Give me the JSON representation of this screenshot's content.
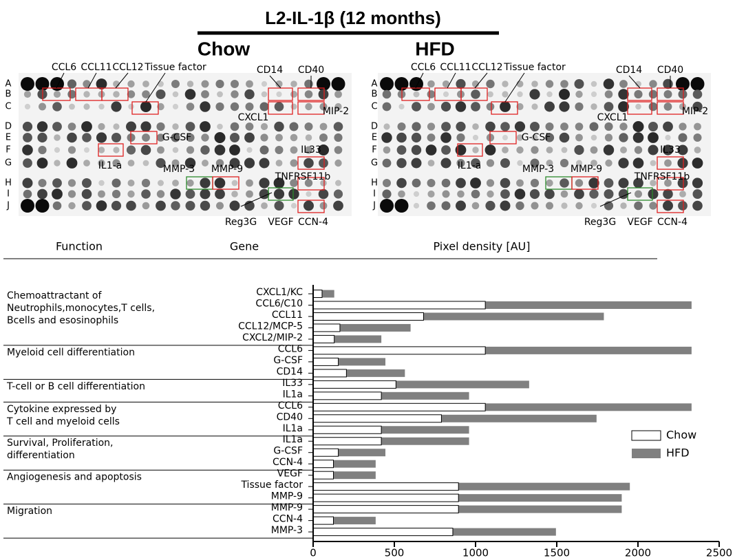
{
  "title": "L2-IL-1β (12 months)",
  "blot": {
    "row_labels": [
      "A",
      "B",
      "C",
      "D",
      "E",
      "F",
      "G",
      "H",
      "I",
      "J"
    ],
    "panels": [
      "Chow",
      "HFD"
    ],
    "labels": [
      "CCL6",
      "CCL11",
      "CCL12",
      "Tissue factor",
      "CD14",
      "CD40",
      "CXCL1",
      "MIP-2",
      "G-CSF",
      "IL1-a",
      "IL33",
      "TNFRSF11b",
      "MMP-3",
      "MMP-9",
      "Reg3G",
      "VEGF",
      "CCN-4"
    ]
  },
  "chart_data": {
    "type": "bar",
    "orientation": "horizontal",
    "function_header": "Function",
    "gene_header": "Gene",
    "xlabel": "Pixel density [AU]",
    "groups": [
      {
        "label": [
          "Chemoattractant of",
          "Neutrophils,monocytes,T cells,",
          "Bcells and esosinophils"
        ],
        "categories": [
          "CXCL1/KC",
          "CCL6/C10",
          "CCL11",
          "CCL12/MCP-5",
          "CXCL2/MIP-2"
        ]
      },
      {
        "label": [
          "Myeloid cell differentiation"
        ],
        "categories": [
          "CCL6",
          "G-CSF",
          "CD14"
        ]
      },
      {
        "label": [
          "T-cell or B cell differentiation"
        ],
        "categories": [
          "IL33",
          "IL1a"
        ]
      },
      {
        "label": [
          "Cytokine expressed by",
          "T cell and myeloid cells"
        ],
        "categories": [
          "CCL6",
          "CD40",
          "IL1a"
        ]
      },
      {
        "label": [
          "Survival, Proliferation,",
          "differentiation"
        ],
        "categories": [
          "IL1a",
          "G-CSF",
          "CCN-4"
        ]
      },
      {
        "label": [
          "Angiogenesis and apoptosis"
        ],
        "categories": [
          "VEGF",
          "Tissue factor",
          "MMP-9"
        ]
      },
      {
        "label": [
          "Migration"
        ],
        "categories": [
          "MMP-9",
          "CCN-4",
          "MMP-3"
        ]
      }
    ],
    "series": [
      {
        "name": "Chow",
        "color": "#ffffff",
        "values": [
          55,
          1060,
          680,
          165,
          130,
          1060,
          155,
          205,
          510,
          420,
          1060,
          790,
          420,
          420,
          155,
          125,
          125,
          895,
          895,
          895,
          125,
          860
        ]
      },
      {
        "name": "HFD",
        "color": "#808080",
        "values": [
          130,
          2330,
          1790,
          600,
          420,
          2330,
          445,
          565,
          1330,
          960,
          2330,
          1745,
          960,
          960,
          445,
          385,
          385,
          1950,
          1900,
          1900,
          385,
          1495
        ]
      }
    ],
    "xlim": [
      0,
      2500
    ],
    "xticks": [
      0,
      500,
      1000,
      1500,
      2000,
      2500
    ],
    "legend": "right"
  }
}
